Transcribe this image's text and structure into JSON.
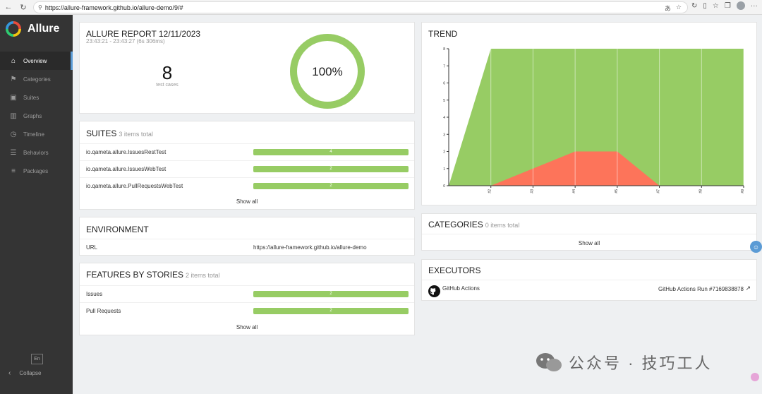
{
  "browser": {
    "url": "https://allure-framework.github.io/allure-demo/9/#"
  },
  "sidebar": {
    "brand": "Allure",
    "items": [
      {
        "label": "Overview",
        "icon": "home-icon",
        "glyph": "⌂",
        "active": true
      },
      {
        "label": "Categories",
        "icon": "flag-icon",
        "glyph": "⚑",
        "active": false
      },
      {
        "label": "Suites",
        "icon": "briefcase-icon",
        "glyph": "▣",
        "active": false
      },
      {
        "label": "Graphs",
        "icon": "bar-chart-icon",
        "glyph": "▥",
        "active": false
      },
      {
        "label": "Timeline",
        "icon": "clock-icon",
        "glyph": "◷",
        "active": false
      },
      {
        "label": "Behaviors",
        "icon": "list-icon",
        "glyph": "☰",
        "active": false
      },
      {
        "label": "Packages",
        "icon": "align-left-icon",
        "glyph": "≡",
        "active": false
      }
    ],
    "language": "En",
    "collapse_label": "Collapse"
  },
  "report": {
    "title": "ALLURE REPORT 12/11/2023",
    "time_range": "23:43:21 - 23:43:27 (6s 306ms)",
    "test_count": "8",
    "test_count_label": "test cases",
    "success_rate": "100%",
    "success_fraction": 1.0
  },
  "suites": {
    "title": "SUITES",
    "subtitle": "3 items total",
    "items": [
      {
        "name": "io.qameta.allure.IssuesRestTest",
        "count": "4"
      },
      {
        "name": "io.qameta.allure.IssuesWebTest",
        "count": "2"
      },
      {
        "name": "io.qameta.allure.PullRequestsWebTest",
        "count": "2"
      }
    ],
    "show_all": "Show all"
  },
  "environment": {
    "title": "ENVIRONMENT",
    "rows": [
      {
        "key": "URL",
        "value": "https://allure-framework.github.io/allure-demo"
      }
    ]
  },
  "features": {
    "title": "FEATURES BY STORIES",
    "subtitle": "2 items total",
    "items": [
      {
        "name": "Issues",
        "count": "2"
      },
      {
        "name": "Pull Requests",
        "count": "2"
      }
    ],
    "show_all": "Show all"
  },
  "trend": {
    "title": "TREND"
  },
  "categories": {
    "title": "CATEGORIES",
    "subtitle": "0 items total",
    "show_all": "Show all"
  },
  "executors": {
    "title": "EXECUTORS",
    "name": "GitHub Actions",
    "run": "GitHub Actions Run #7169838878"
  },
  "watermark": "公众号 · 技巧工人",
  "colors": {
    "passed": "#97cc64",
    "failed": "#fd745a",
    "sidebar": "#343434",
    "accent": "#5b9bd5"
  },
  "chart_data": {
    "type": "area",
    "title": "TREND",
    "x": [
      "",
      "#2",
      "#3",
      "#4",
      "#5",
      "#7",
      "#8",
      "#9"
    ],
    "xlim_labels": [
      "#2",
      "#3",
      "#4",
      "#5",
      "#7",
      "#8",
      "#9"
    ],
    "ylim": [
      0,
      8
    ],
    "yticks": [
      0,
      1,
      2,
      3,
      4,
      5,
      6,
      7,
      8
    ],
    "series": [
      {
        "color": "#97cc64",
        "values": [
          0,
          8,
          8,
          8,
          8,
          8,
          8,
          8
        ]
      },
      {
        "color": "#fd745a",
        "values": [
          0,
          0,
          1,
          2,
          2,
          0,
          0,
          0
        ]
      }
    ],
    "grid": true
  }
}
